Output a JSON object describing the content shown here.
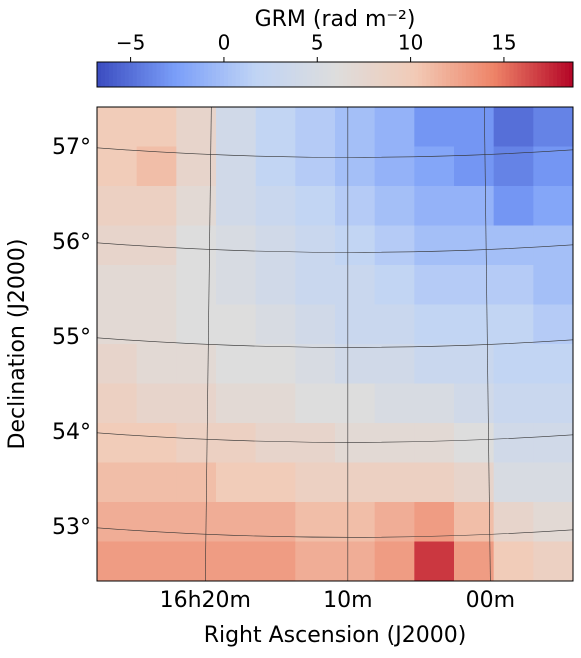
{
  "chart_data": {
    "type": "heatmap",
    "colorbar_title": "GRM  (rad m⁻²)",
    "zlim": [
      -6.8,
      18.7
    ],
    "zticks": [
      {
        "value": -5,
        "label": "−5"
      },
      0,
      5,
      10,
      15
    ],
    "colormap": [
      "#3b4cc0",
      "#7b9ff9",
      "#c0d4f5",
      "#dddddd",
      "#f2cbb7",
      "#ee8468",
      "#b40426"
    ],
    "x_label": "Right Ascension (J2000)",
    "y_label": "Declination (J2000)",
    "xlim": [
      27.6,
      -5.8
    ],
    "xticks": [
      {
        "value": 20,
        "label": "16h20m"
      },
      {
        "value": 10,
        "label": "10m"
      },
      {
        "value": 0,
        "label": "00m"
      }
    ],
    "ylim": [
      52.44,
      57.43
    ],
    "yticks": [
      {
        "value": 57,
        "label": "57°"
      },
      {
        "value": 56,
        "label": "56°"
      },
      {
        "value": 55,
        "label": "55°"
      },
      {
        "value": 54,
        "label": "54°"
      },
      {
        "value": 53,
        "label": "53°"
      }
    ],
    "grid": true,
    "z": [
      [
        10,
        10,
        8,
        4,
        2,
        1,
        0,
        -1,
        -3,
        -3,
        -5,
        -4
      ],
      [
        10,
        11,
        8,
        4,
        2,
        1,
        0,
        -1,
        -2,
        -3,
        -4,
        -3
      ],
      [
        9,
        9,
        7,
        4,
        3,
        2,
        1,
        0,
        -1,
        -1,
        -3,
        -2
      ],
      [
        8,
        8,
        6,
        5,
        4,
        3,
        2,
        1,
        0,
        0,
        0,
        0
      ],
      [
        7,
        7,
        6,
        5,
        4,
        3,
        3,
        2,
        1,
        1,
        1,
        0
      ],
      [
        7,
        7,
        6,
        6,
        5,
        4,
        3,
        3,
        2,
        2,
        2,
        1
      ],
      [
        8,
        7,
        7,
        6,
        6,
        5,
        4,
        4,
        3,
        3,
        2,
        2
      ],
      [
        9,
        8,
        8,
        7,
        7,
        6,
        6,
        5,
        5,
        4,
        3,
        3
      ],
      [
        10,
        10,
        9,
        9,
        8,
        8,
        7,
        7,
        7,
        6,
        4,
        4
      ],
      [
        11,
        11,
        11,
        10,
        10,
        9,
        9,
        9,
        9,
        8,
        5,
        5
      ],
      [
        12,
        12,
        12,
        12,
        12,
        11,
        11,
        12,
        13,
        11,
        8,
        7
      ],
      [
        13,
        13,
        13,
        13,
        13,
        12,
        12,
        13,
        17,
        13,
        10,
        9
      ]
    ]
  }
}
